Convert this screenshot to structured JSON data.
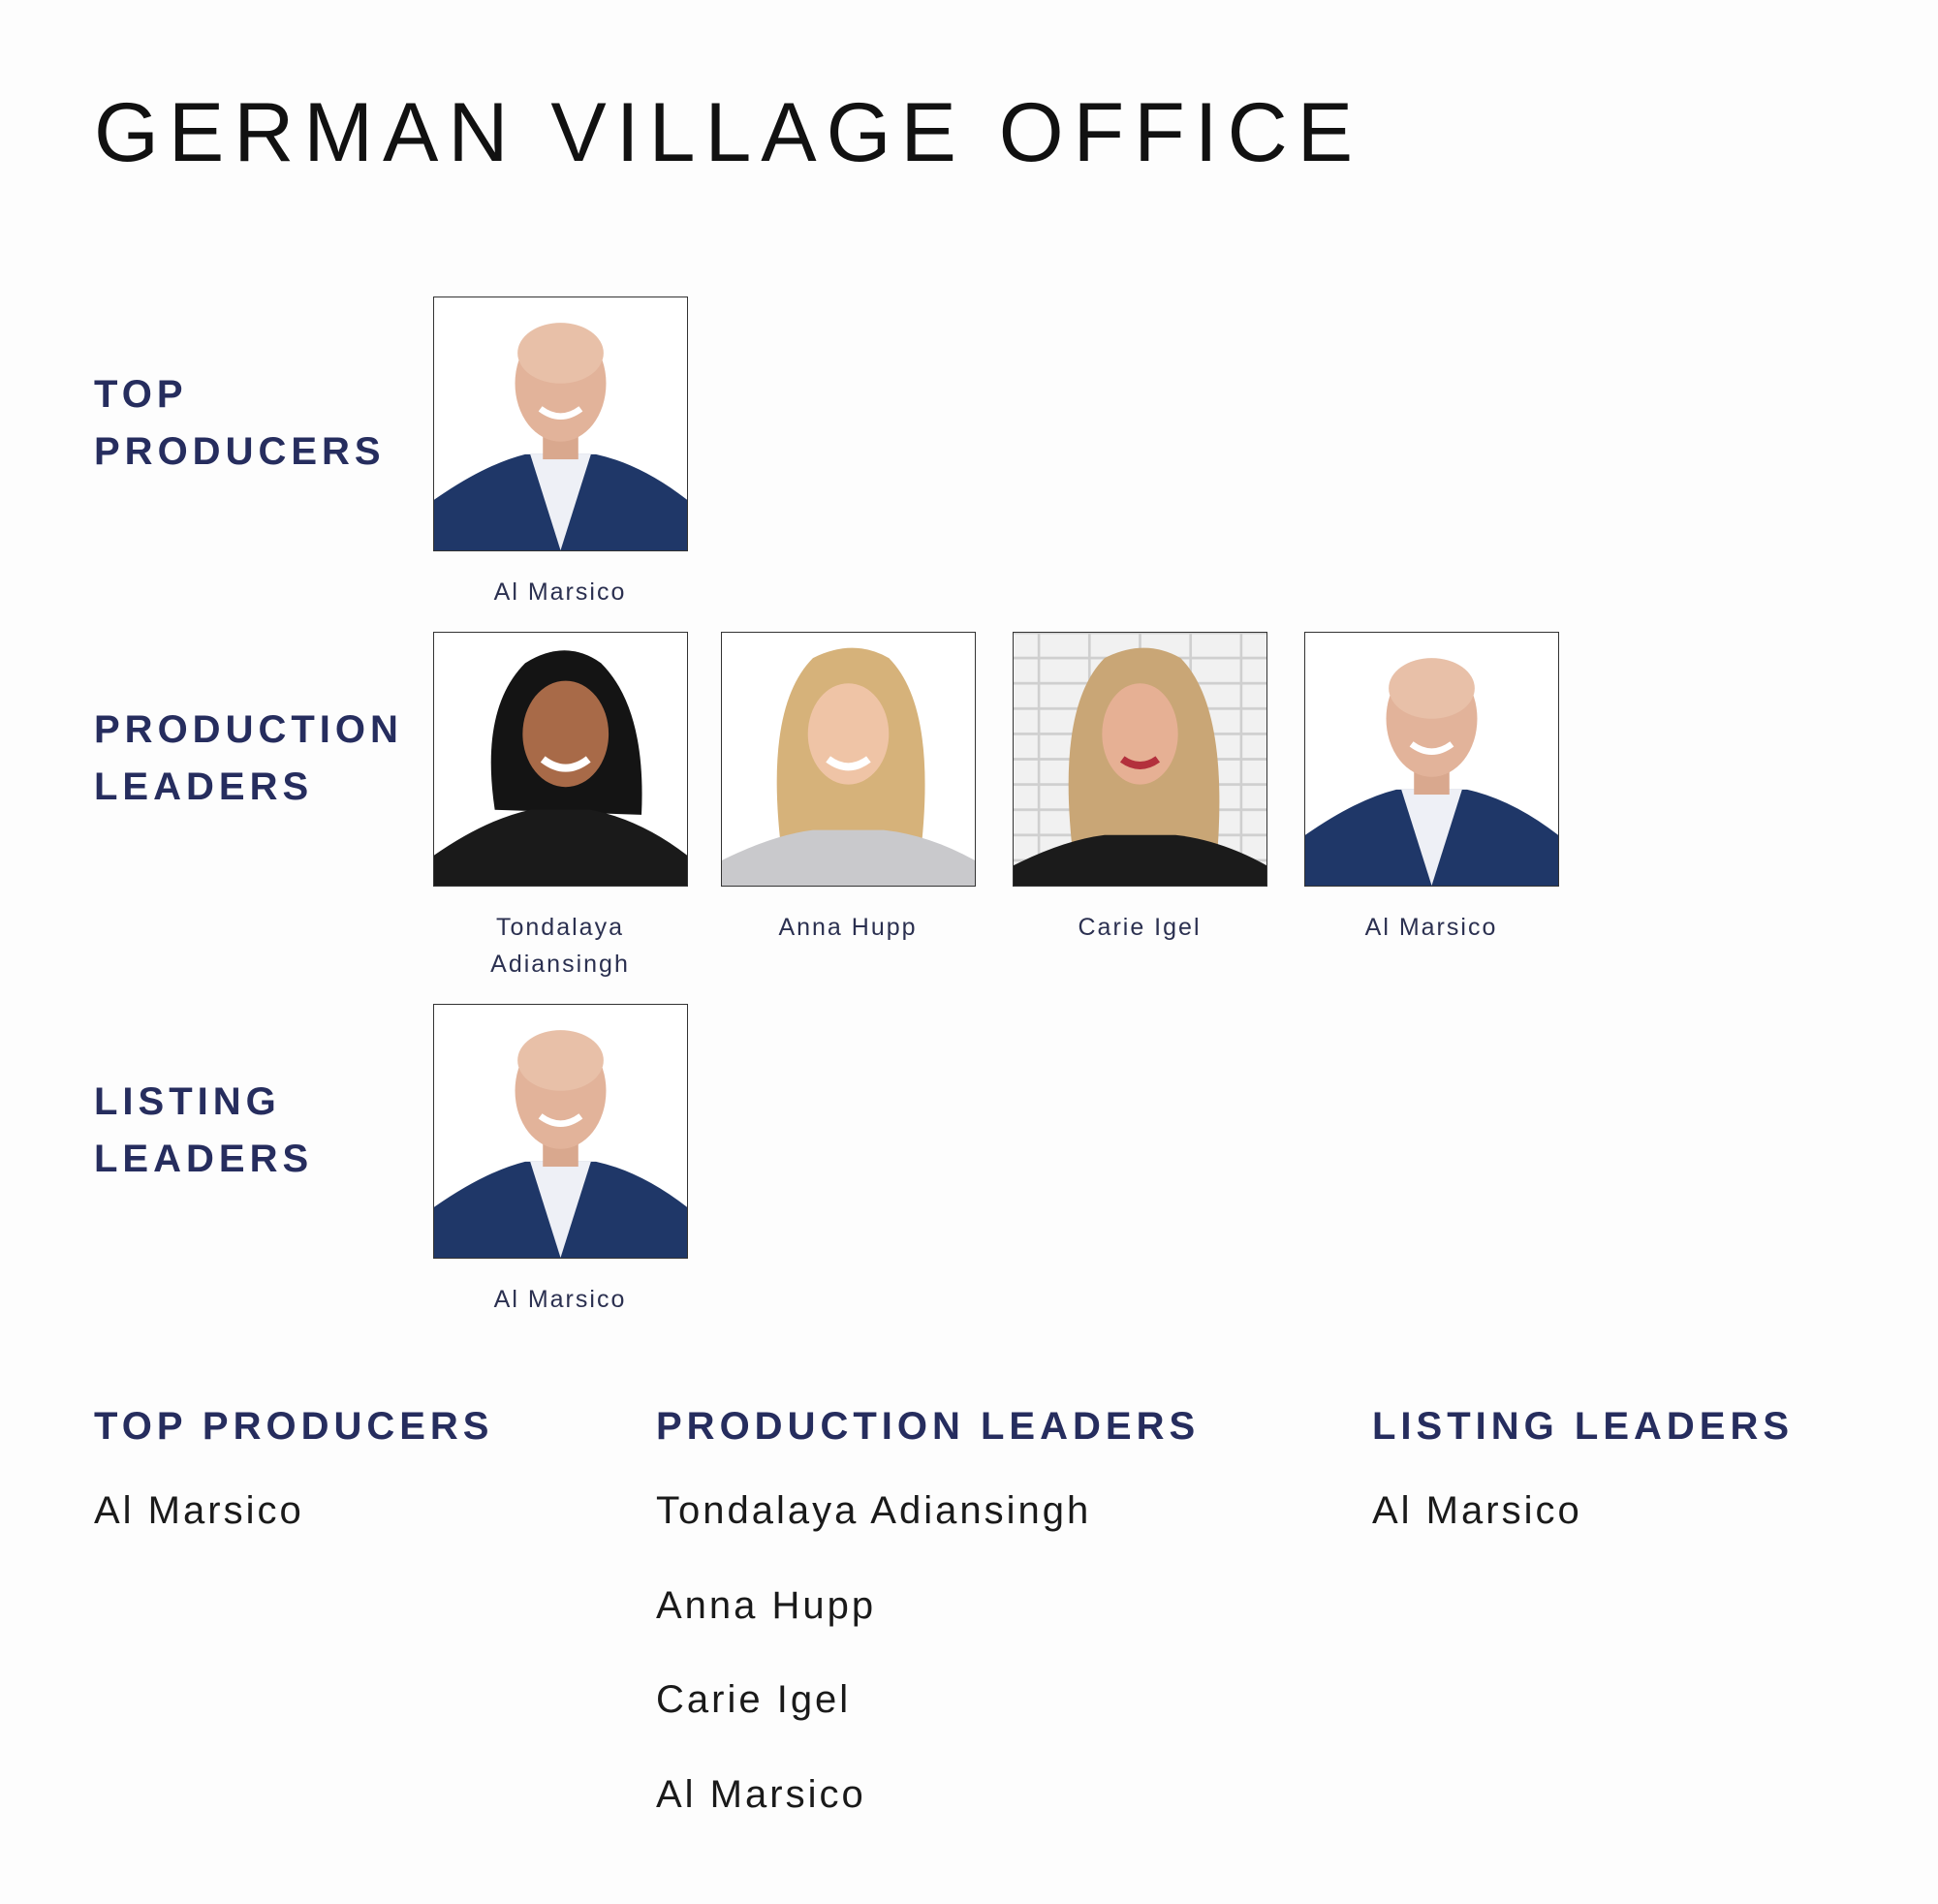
{
  "title": "GERMAN VILLAGE OFFICE",
  "colors": {
    "accent": "#262d5e",
    "title": "#111111"
  },
  "sections": [
    {
      "label_lines": [
        "TOP",
        "PRODUCERS"
      ],
      "people": [
        {
          "name": "Al Marsico",
          "photo": "man-bald-navy-suit"
        }
      ]
    },
    {
      "label_lines": [
        "PRODUCTION",
        "LEADERS"
      ],
      "people": [
        {
          "name_lines": [
            "Tondalaya",
            "Adiansingh"
          ],
          "photo": "woman-dark-hair"
        },
        {
          "name": "Anna Hupp",
          "photo": "woman-blonde-wavy"
        },
        {
          "name": "Carie Igel",
          "photo": "woman-blonde-brick-wall"
        },
        {
          "name": "Al Marsico",
          "photo": "man-bald-navy-suit"
        }
      ]
    },
    {
      "label_lines": [
        "LISTING",
        "LEADERS"
      ],
      "people": [
        {
          "name": "Al Marsico",
          "photo": "man-bald-navy-suit"
        }
      ]
    }
  ],
  "lists": [
    {
      "heading": "TOP PRODUCERS",
      "names": [
        "Al Marsico"
      ]
    },
    {
      "heading": "PRODUCTION LEADERS",
      "names": [
        "Tondalaya Adiansingh",
        "Anna Hupp",
        "Carie Igel",
        "Al Marsico"
      ]
    },
    {
      "heading": "LISTING LEADERS",
      "names": [
        "Al Marsico"
      ]
    }
  ]
}
